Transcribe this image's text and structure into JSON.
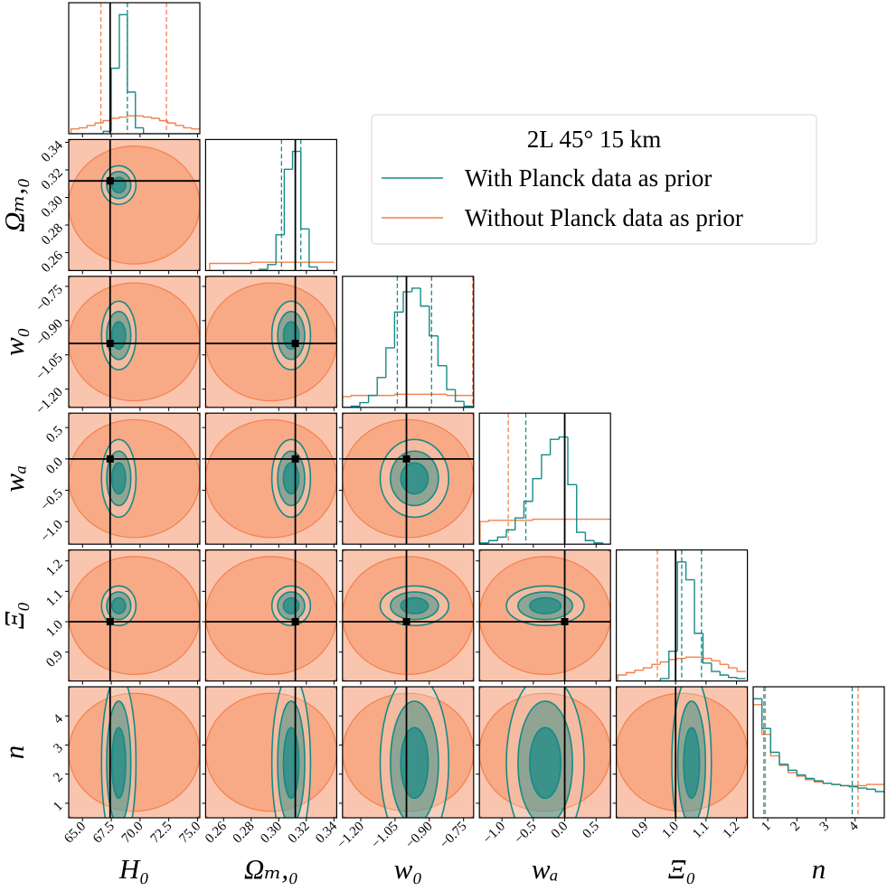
{
  "chart_data": {
    "type": "corner",
    "legend_title": "2L 45° 15 km",
    "series": [
      {
        "name": "With Planck data as prior",
        "color": "#168a86"
      },
      {
        "name": "Without Planck data as prior",
        "color": "#f4804c"
      }
    ],
    "hist_ylim": [
      0,
      1.1
    ],
    "params": [
      {
        "label": "H₀",
        "lim": [
          63.8,
          75.2
        ],
        "truth": 67.4,
        "ticks": [
          {
            "value": 65,
            "label": "65.0"
          },
          {
            "value": 67.5,
            "label": "67.5"
          },
          {
            "value": 70,
            "label": "70.0"
          },
          {
            "value": 72.5,
            "label": "72.5"
          },
          {
            "value": 75,
            "label": "75.0"
          }
        ],
        "bins": [
          64,
          64.7,
          65.4,
          66.1,
          66.8,
          67.5,
          68.2,
          68.9,
          69.6,
          70.3,
          71.0,
          71.7,
          72.4,
          73.1,
          73.8,
          74.5,
          75.2
        ],
        "counts": [
          [
            0,
            0,
            0,
            0,
            0.02,
            0.55,
            1.0,
            0.35,
            0.05,
            0,
            0,
            0,
            0,
            0,
            0,
            0
          ],
          [
            0.04,
            0.05,
            0.07,
            0.09,
            0.11,
            0.13,
            0.14,
            0.15,
            0.15,
            0.14,
            0.13,
            0.11,
            0.09,
            0.07,
            0.05,
            0.04
          ]
        ],
        "quantiles": [
          [
            67.4,
            68.9
          ],
          [
            66.6,
            72.3
          ]
        ]
      },
      {
        "label": "Ωₘ,₀",
        "lim": [
          0.247,
          0.342
        ],
        "truth": 0.312,
        "ticks": [
          0.26,
          0.28,
          {
            "value": 0.3,
            "label": "0.30"
          },
          0.32,
          0.34
        ],
        "bins": [
          0.25,
          0.256,
          0.262,
          0.268,
          0.274,
          0.28,
          0.286,
          0.292,
          0.298,
          0.304,
          0.31,
          0.316,
          0.322,
          0.328,
          0.334,
          0.34
        ],
        "counts": [
          [
            0,
            0,
            0,
            0,
            0,
            0,
            0.01,
            0.05,
            0.3,
            0.85,
            1.0,
            0.35,
            0.03,
            0,
            0
          ],
          [
            0.06,
            0.06,
            0.06,
            0.06,
            0.06,
            0.07,
            0.07,
            0.07,
            0.07,
            0.07,
            0.07,
            0.07,
            0.07,
            0.07,
            0.07
          ]
        ],
        "quantiles": [
          [
            0.302,
            0.316
          ],
          []
        ]
      },
      {
        "label": "w₀",
        "lim": [
          -1.28,
          -0.706
        ],
        "truth": -1.0,
        "ticks": [
          {
            "value": -1.2,
            "label": "−1.20"
          },
          {
            "value": -1.05,
            "label": "−1.05"
          },
          {
            "value": -0.9,
            "label": "−0.90"
          },
          {
            "value": -0.75,
            "label": "−0.75"
          }
        ],
        "bins": [
          -1.28,
          -1.242,
          -1.204,
          -1.166,
          -1.128,
          -1.09,
          -1.052,
          -1.014,
          -0.976,
          -0.938,
          -0.9,
          -0.862,
          -0.824,
          -0.786,
          -0.748,
          -0.71
        ],
        "counts": [
          [
            0,
            0.01,
            0.04,
            0.1,
            0.25,
            0.5,
            0.8,
            0.97,
            1.0,
            0.85,
            0.6,
            0.35,
            0.15,
            0.05,
            0.01
          ],
          [
            0.09,
            0.1,
            0.1,
            0.1,
            0.1,
            0.1,
            0.11,
            0.11,
            0.11,
            0.11,
            0.11,
            0.11,
            0.1,
            0.1,
            0.1
          ]
        ],
        "quantiles": [
          [
            -1.04,
            -0.89
          ],
          [
            -0.71
          ]
        ]
      },
      {
        "label": "wₐ",
        "lim": [
          -1.36,
          0.73
        ],
        "truth": 0,
        "ticks": [
          {
            "value": -1,
            "label": "−1.0"
          },
          {
            "value": -0.5,
            "label": "−0.5"
          },
          {
            "value": 0,
            "label": "0.0"
          },
          0.5
        ],
        "bins": [
          -1.35,
          -1.21,
          -1.07,
          -0.93,
          -0.79,
          -0.65,
          -0.51,
          -0.37,
          -0.23,
          -0.09,
          0.05,
          0.19,
          0.33,
          0.47,
          0.61,
          0.75
        ],
        "counts": [
          [
            0.01,
            0.03,
            0.06,
            0.12,
            0.22,
            0.36,
            0.55,
            0.75,
            0.88,
            0.9,
            0.5,
            0.1,
            0.03,
            0.01,
            0
          ],
          [
            0.19,
            0.2,
            0.2,
            0.2,
            0.2,
            0.2,
            0.21,
            0.21,
            0.21,
            0.21,
            0.21,
            0.21,
            0.21,
            0.21,
            0.21
          ]
        ],
        "quantiles": [
          [
            -0.62,
            0
          ],
          [
            -0.9
          ]
        ]
      },
      {
        "label": "Ξ₀",
        "lim": [
          0.805,
          1.236
        ],
        "truth": 1,
        "ticks": [
          0.9,
          {
            "value": 1,
            "label": "1.0"
          },
          1.1,
          1.2
        ],
        "bins": [
          0.81,
          0.838,
          0.866,
          0.894,
          0.922,
          0.95,
          0.978,
          1.006,
          1.034,
          1.062,
          1.09,
          1.118,
          1.146,
          1.174,
          1.202,
          1.23
        ],
        "counts": [
          [
            0,
            0,
            0,
            0,
            0,
            0.02,
            0.25,
            1.0,
            0.85,
            0.4,
            0.15,
            0.08,
            0.05,
            0.03,
            0.02
          ],
          [
            0.05,
            0.07,
            0.09,
            0.11,
            0.14,
            0.16,
            0.18,
            0.19,
            0.2,
            0.2,
            0.19,
            0.17,
            0.14,
            0.11,
            0.08
          ]
        ],
        "quantiles": [
          [
            1.02,
            1.085
          ],
          [
            0.94
          ]
        ]
      },
      {
        "label": "n",
        "lim": [
          0.5,
          5.0
        ],
        "truth": null,
        "ticks": [
          1,
          2,
          3,
          4
        ],
        "bins": [
          0.5,
          0.8,
          1.1,
          1.4,
          1.7,
          2.0,
          2.3,
          2.6,
          2.9,
          3.2,
          3.5,
          3.8,
          4.1,
          4.4,
          4.7,
          5.0
        ],
        "counts": [
          [
            1.0,
            0.75,
            0.55,
            0.45,
            0.4,
            0.36,
            0.33,
            0.31,
            0.29,
            0.28,
            0.27,
            0.26,
            0.25,
            0.24,
            0.22
          ],
          [
            0.95,
            0.7,
            0.52,
            0.44,
            0.38,
            0.35,
            0.32,
            0.3,
            0.29,
            0.28,
            0.27,
            0.27,
            0.27,
            0.28,
            0.28
          ]
        ],
        "quantiles": [
          [
            0.87,
            3.9
          ],
          [
            0.92,
            4.1
          ]
        ]
      }
    ]
  }
}
